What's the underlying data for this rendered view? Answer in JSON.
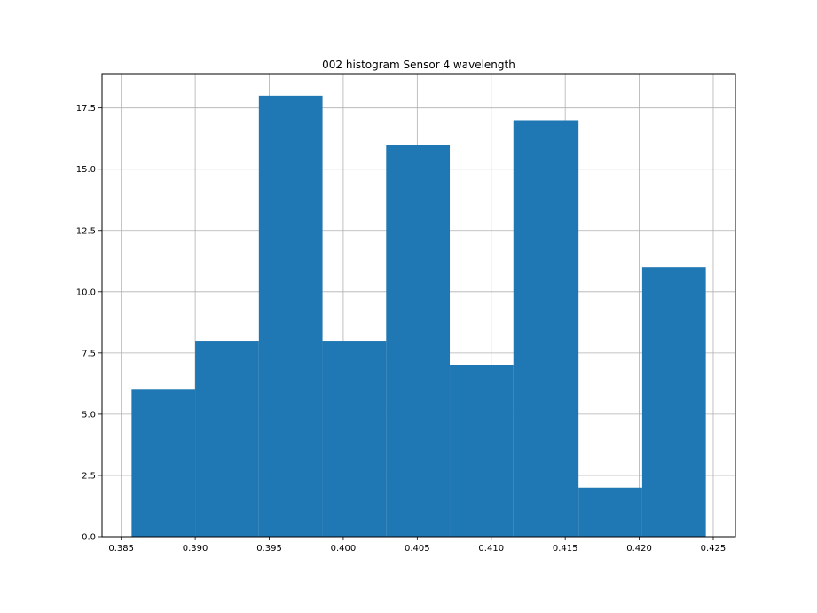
{
  "chart_data": {
    "type": "histogram",
    "title": "002 histogram Sensor 4 wavelength",
    "xlabel": "",
    "ylabel": "",
    "bins": [
      {
        "x0": 0.3857,
        "x1": 0.39,
        "count": 6
      },
      {
        "x0": 0.39,
        "x1": 0.3943,
        "count": 8
      },
      {
        "x0": 0.3943,
        "x1": 0.3986,
        "count": 18
      },
      {
        "x0": 0.3986,
        "x1": 0.4029,
        "count": 8
      },
      {
        "x0": 0.4029,
        "x1": 0.4072,
        "count": 16
      },
      {
        "x0": 0.4072,
        "x1": 0.4115,
        "count": 7
      },
      {
        "x0": 0.4115,
        "x1": 0.4159,
        "count": 17
      },
      {
        "x0": 0.4159,
        "x1": 0.4202,
        "count": 2
      },
      {
        "x0": 0.4202,
        "x1": 0.4245,
        "count": 11
      }
    ],
    "xlim": [
      0.3837,
      0.4265
    ],
    "ylim": [
      0,
      18.9
    ],
    "xticks": [
      "0.385",
      "0.390",
      "0.395",
      "0.400",
      "0.405",
      "0.410",
      "0.415",
      "0.420",
      "0.425"
    ],
    "yticks": [
      "0.0",
      "2.5",
      "5.0",
      "7.5",
      "10.0",
      "12.5",
      "15.0",
      "17.5"
    ],
    "grid": true,
    "bar_color": "#1f77b4",
    "grid_color": "#b0b0b0"
  }
}
